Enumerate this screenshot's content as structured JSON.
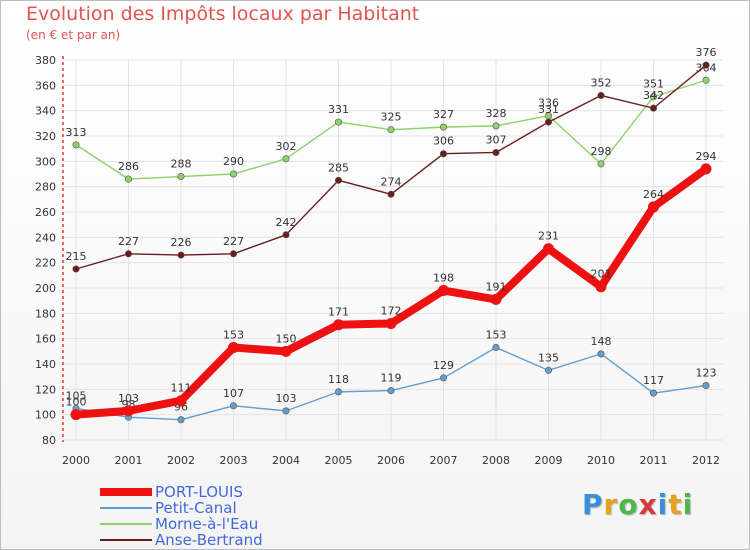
{
  "chart_data": {
    "type": "line",
    "title": "Evolution des Impôts locaux par Habitant",
    "subtitle": "(en € et par an)",
    "xlabel": "",
    "ylabel": "",
    "categories": [
      "2000",
      "2001",
      "2002",
      "2003",
      "2004",
      "2005",
      "2006",
      "2007",
      "2008",
      "2009",
      "2010",
      "2011",
      "2012"
    ],
    "ylim": [
      80,
      380
    ],
    "yticks": [
      80,
      100,
      120,
      140,
      160,
      180,
      200,
      220,
      240,
      260,
      280,
      300,
      320,
      340,
      360,
      380
    ],
    "grid": true,
    "legend_position": "bottom-left",
    "series": [
      {
        "name": "PORT-LOUIS",
        "color": "#ee1111",
        "values": [
          100,
          103,
          111,
          153,
          150,
          171,
          172,
          198,
          191,
          231,
          201,
          264,
          294
        ]
      },
      {
        "name": "Petit-Canal",
        "color": "#5f9fd2",
        "values": [
          105,
          98,
          96,
          107,
          103,
          118,
          119,
          129,
          153,
          135,
          148,
          117,
          123
        ]
      },
      {
        "name": "Morne-à-l'Eau",
        "color": "#8ed36a",
        "values": [
          313,
          286,
          288,
          290,
          302,
          331,
          325,
          327,
          328,
          336,
          298,
          351,
          364
        ]
      },
      {
        "name": "Anse-Bertrand",
        "color": "#6b1d1d",
        "values": [
          215,
          227,
          226,
          227,
          242,
          285,
          274,
          306,
          307,
          331,
          352,
          342,
          376
        ]
      }
    ]
  },
  "logo": {
    "letters": [
      "P",
      "r",
      "o",
      "x",
      "i",
      "t",
      "i"
    ],
    "colors": [
      "#3a8fd9",
      "#e8a020",
      "#4cb84a",
      "#d83a3a",
      "#3a8fd9",
      "#e8a020",
      "#4cb84a"
    ]
  }
}
